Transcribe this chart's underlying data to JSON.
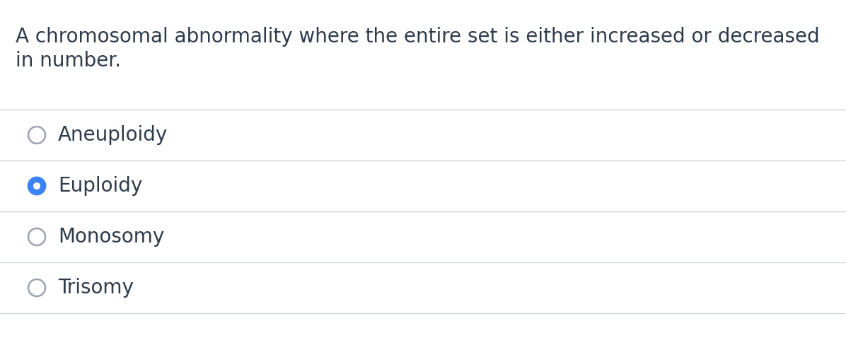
{
  "question_line1": "A chromosomal abnormality where the entire set is either increased or decreased",
  "question_line2": "in number.",
  "options": [
    "Aneuploidy",
    "Euploidy",
    "Monosomy",
    "Trisomy"
  ],
  "selected_index": 1,
  "background_color": "#ffffff",
  "text_color": "#2d3a4a",
  "question_fontsize": 20,
  "option_fontsize": 20,
  "radio_unselected_edge": "#9ca3af",
  "radio_selected_edge": "#3b82f6",
  "radio_selected_fill": "#3b82f6",
  "radio_selected_inner": "#ffffff",
  "divider_color": "#d1d5db",
  "fig_width": 11.96,
  "fig_height": 5.12,
  "dpi": 100
}
